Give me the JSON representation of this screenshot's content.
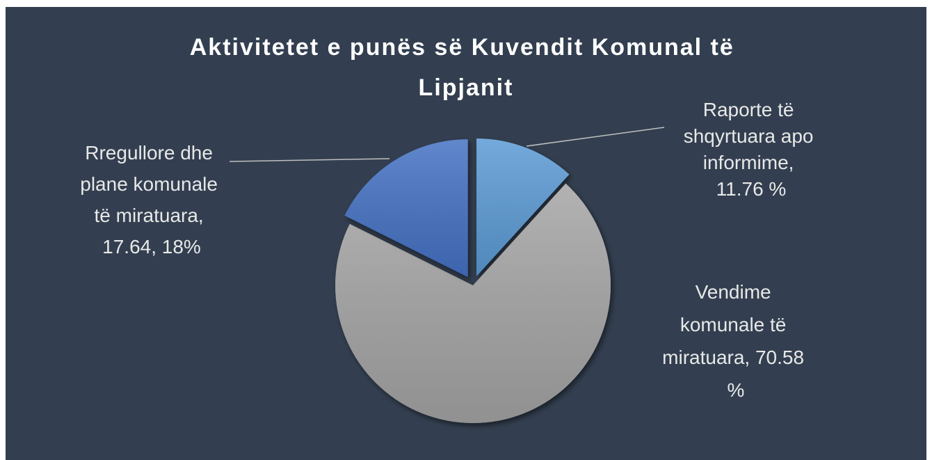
{
  "chart_data": {
    "type": "pie",
    "title": "Aktivitetet e punës së Kuvendit Komunal të Lipjanit",
    "values": [
      11.76,
      70.58,
      17.64
    ],
    "value_labels": [
      "Raporte të shqyrtuara apo informime, 11.76 %",
      "Vendime komunale të miratuara, 70.58 %",
      "Rregullore dhe plane komunale të miratuara, 17.64, 18%"
    ],
    "colors": [
      "#5b9bd5",
      "#a5a5a5",
      "#4472c4"
    ]
  }
}
